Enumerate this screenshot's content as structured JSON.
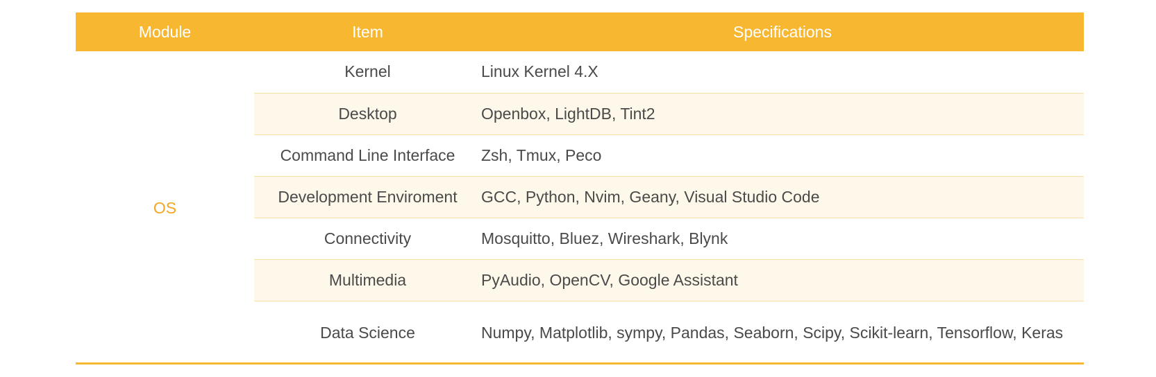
{
  "table": {
    "headers": [
      "Module",
      "Item",
      "Specifications"
    ],
    "module": "OS",
    "rows": [
      {
        "item": "Kernel",
        "spec": "Linux Kernel 4.X"
      },
      {
        "item": "Desktop",
        "spec": "Openbox, LightDB, Tint2"
      },
      {
        "item": "Command Line Interface",
        "spec": "Zsh, Tmux, Peco"
      },
      {
        "item": "Development Enviroment",
        "spec": "GCC, Python, Nvim, Geany, Visual Studio Code"
      },
      {
        "item": "Connectivity",
        "spec": "Mosquitto, Bluez, Wireshark, Blynk"
      },
      {
        "item": "Multimedia",
        "spec": "PyAudio, OpenCV, Google Assistant"
      },
      {
        "item": "Data Science",
        "spec": "Numpy, Matplotlib, sympy, Pandas, Seaborn, Scipy, Scikit-learn, Tensorflow, Keras"
      }
    ]
  },
  "colors": {
    "header_bg": "#f7b731",
    "module_text": "#f5a623",
    "alt_row_bg": "#fef8ea"
  }
}
